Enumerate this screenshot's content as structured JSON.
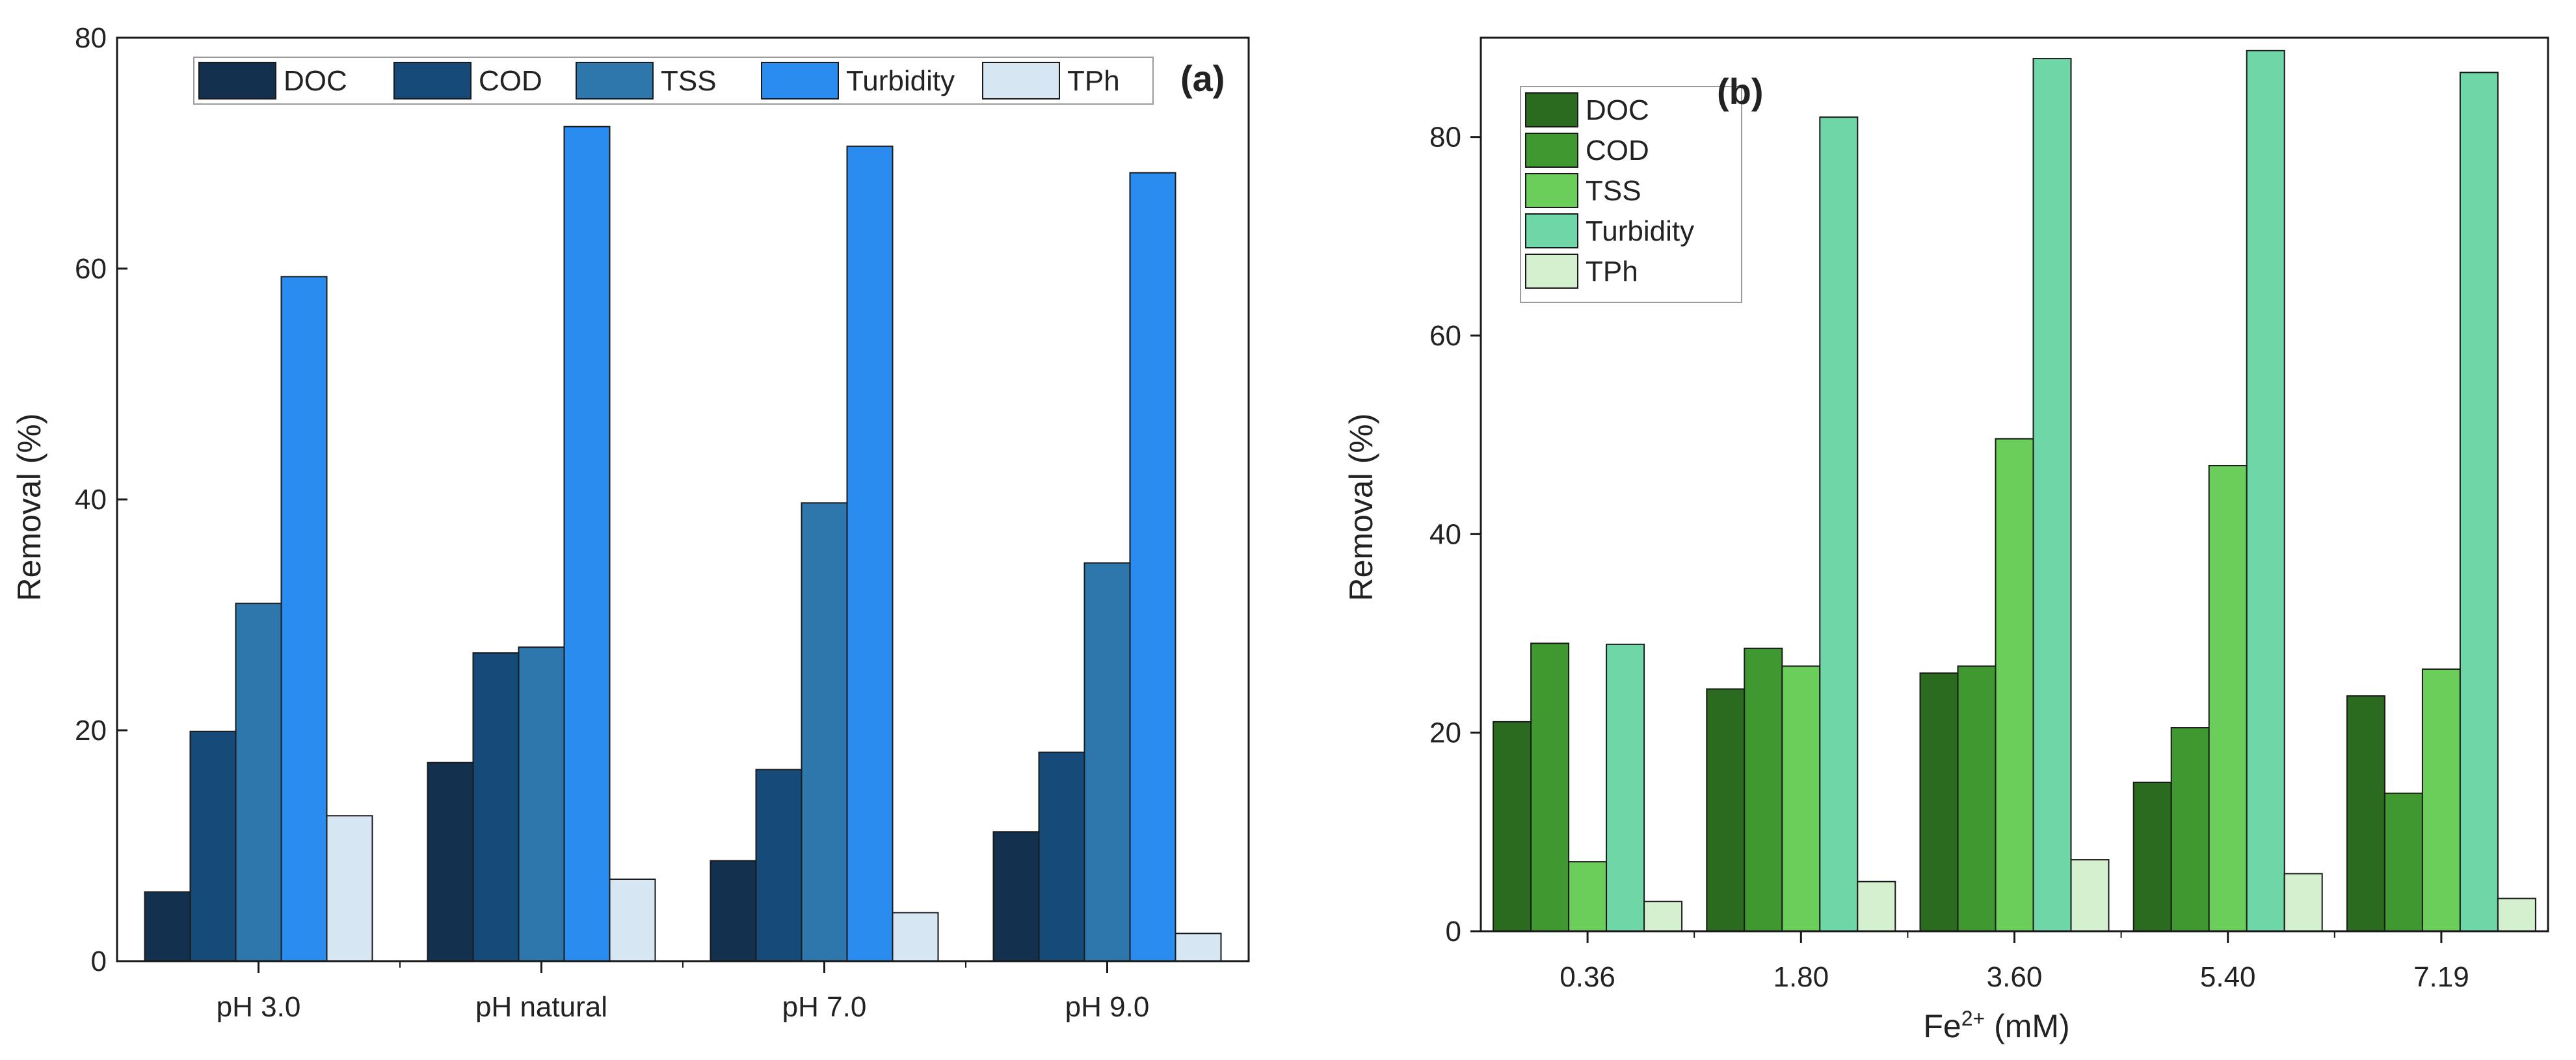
{
  "chart_data": [
    {
      "type": "bar",
      "panel_label": "(a)",
      "categories": [
        "pH 3.0",
        "pH natural",
        "pH 7.0",
        "pH 9.0"
      ],
      "ylabel": "Removal (%)",
      "xlabel": "",
      "ylim": [
        0,
        80
      ],
      "yticks": [
        0,
        20,
        40,
        60,
        80
      ],
      "legend_position": "top",
      "series": [
        {
          "name": "DOC",
          "color": "#13304f",
          "values": [
            6.0,
            17.2,
            8.7,
            11.2
          ]
        },
        {
          "name": "COD",
          "color": "#164a78",
          "values": [
            19.9,
            26.7,
            16.6,
            18.1
          ]
        },
        {
          "name": "TSS",
          "color": "#2e77ac",
          "values": [
            31.0,
            27.2,
            39.7,
            34.5
          ]
        },
        {
          "name": "Turbidity",
          "color": "#2b8cf0",
          "values": [
            59.3,
            72.3,
            70.6,
            68.3
          ]
        },
        {
          "name": "TPh",
          "color": "#d6e6f2",
          "values": [
            12.6,
            7.1,
            4.2,
            2.4
          ]
        }
      ]
    },
    {
      "type": "bar",
      "panel_label": "(b)",
      "categories": [
        "0.36",
        "1.80",
        "3.60",
        "5.40",
        "7.19"
      ],
      "ylabel": "Removal (%)",
      "xlabel_main": "Fe",
      "xlabel_sup": "2+",
      "xlabel_unit": " (mM)",
      "ylim": [
        0,
        90
      ],
      "yticks": [
        0,
        20,
        40,
        60,
        80
      ],
      "legend_position": "top-left",
      "series": [
        {
          "name": "DOC",
          "color": "#2a6b1f",
          "values": [
            21.1,
            24.4,
            26.0,
            15.0,
            23.7
          ]
        },
        {
          "name": "COD",
          "color": "#3f9930",
          "values": [
            29.0,
            28.5,
            26.7,
            20.5,
            13.9
          ]
        },
        {
          "name": "TSS",
          "color": "#6bcd5a",
          "values": [
            7.0,
            26.7,
            49.6,
            46.9,
            26.4
          ]
        },
        {
          "name": "Turbidity",
          "color": "#6fd6a8",
          "values": [
            28.9,
            82.0,
            87.9,
            88.7,
            86.5
          ]
        },
        {
          "name": "TPh",
          "color": "#d4f0cf",
          "values": [
            3.0,
            5.0,
            7.2,
            5.8,
            3.3
          ]
        }
      ]
    }
  ]
}
